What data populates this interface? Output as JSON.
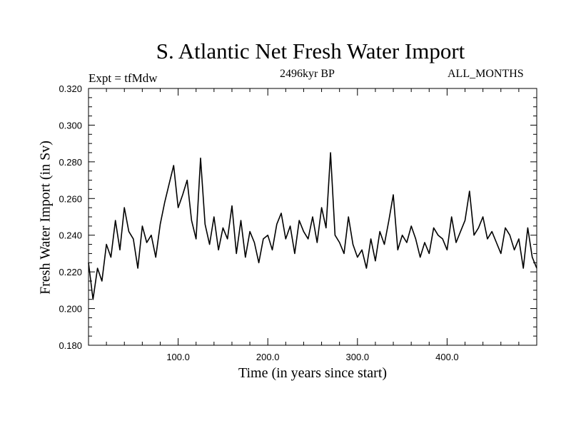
{
  "chart_data": {
    "type": "line",
    "title": "S. Atlantic Net Fresh Water Import",
    "subtitle": "2496kyr BP",
    "left_label": "Expt = tfMdw",
    "right_label": "ALL_MONTHS",
    "xlabel": "Time (in years since start)",
    "ylabel": "Fresh Water Import (in Sv)",
    "xlim": [
      0,
      500
    ],
    "ylim": [
      0.18,
      0.32
    ],
    "x_ticks": [
      100,
      200,
      300,
      400
    ],
    "x_tick_labels": [
      "100.0",
      "200.0",
      "300.0",
      "400.0"
    ],
    "y_ticks": [
      0.18,
      0.2,
      0.22,
      0.24,
      0.26,
      0.28,
      0.3,
      0.32
    ],
    "y_tick_labels": [
      "0.180",
      "0.200",
      "0.220",
      "0.240",
      "0.260",
      "0.280",
      "0.300",
      "0.320"
    ],
    "grid": false,
    "series": [
      {
        "name": "Fresh Water Import",
        "color": "#000000",
        "x": [
          0,
          5,
          10,
          15,
          20,
          25,
          30,
          35,
          40,
          45,
          50,
          55,
          60,
          65,
          70,
          75,
          80,
          85,
          90,
          95,
          100,
          105,
          110,
          115,
          120,
          125,
          130,
          135,
          140,
          145,
          150,
          155,
          160,
          165,
          170,
          175,
          180,
          185,
          190,
          195,
          200,
          205,
          210,
          215,
          220,
          225,
          230,
          235,
          240,
          245,
          250,
          255,
          260,
          265,
          270,
          275,
          280,
          285,
          290,
          295,
          300,
          305,
          310,
          315,
          320,
          325,
          330,
          335,
          340,
          345,
          350,
          355,
          360,
          365,
          370,
          375,
          380,
          385,
          390,
          395,
          400,
          405,
          410,
          415,
          420,
          425,
          430,
          435,
          440,
          445,
          450,
          455,
          460,
          465,
          470,
          475,
          480,
          485,
          490,
          495,
          500
        ],
        "values": [
          0.225,
          0.205,
          0.222,
          0.215,
          0.235,
          0.228,
          0.248,
          0.232,
          0.255,
          0.242,
          0.238,
          0.222,
          0.245,
          0.236,
          0.24,
          0.228,
          0.246,
          0.258,
          0.268,
          0.278,
          0.255,
          0.262,
          0.27,
          0.248,
          0.238,
          0.282,
          0.246,
          0.235,
          0.25,
          0.232,
          0.244,
          0.238,
          0.256,
          0.23,
          0.248,
          0.228,
          0.242,
          0.236,
          0.225,
          0.238,
          0.24,
          0.232,
          0.246,
          0.252,
          0.238,
          0.245,
          0.23,
          0.248,
          0.242,
          0.238,
          0.25,
          0.236,
          0.255,
          0.244,
          0.285,
          0.24,
          0.236,
          0.23,
          0.25,
          0.235,
          0.228,
          0.232,
          0.222,
          0.238,
          0.226,
          0.242,
          0.235,
          0.248,
          0.262,
          0.232,
          0.24,
          0.236,
          0.245,
          0.238,
          0.228,
          0.236,
          0.23,
          0.244,
          0.24,
          0.238,
          0.232,
          0.25,
          0.236,
          0.242,
          0.248,
          0.264,
          0.24,
          0.244,
          0.25,
          0.238,
          0.242,
          0.236,
          0.23,
          0.244,
          0.24,
          0.232,
          0.238,
          0.222,
          0.244,
          0.228,
          0.222
        ]
      }
    ]
  }
}
